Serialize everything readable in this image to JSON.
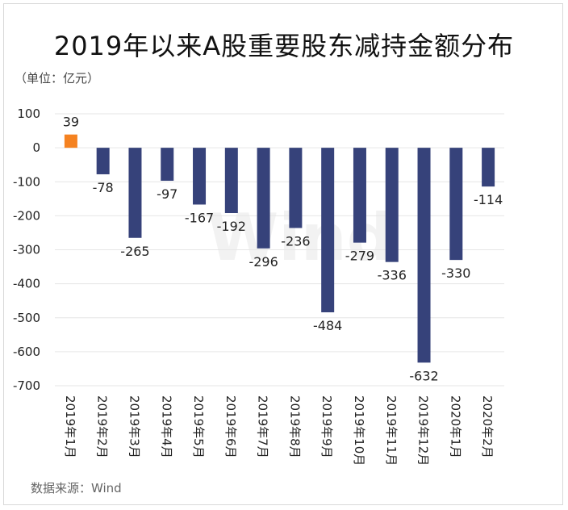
{
  "title": "2019年以来A股重要股东减持金额分布",
  "unit": "（单位：亿元）",
  "source": "数据来源：Wind",
  "watermark": "Wind",
  "colors": {
    "positive": "#f58220",
    "negative": "#36427a"
  },
  "chart_data": {
    "type": "bar",
    "title": "2019年以来A股重要股东减持金额分布",
    "xlabel": "",
    "ylabel": "（单位：亿元）",
    "ylim": [
      -700,
      100
    ],
    "yticks": [
      100,
      0,
      -100,
      -200,
      -300,
      -400,
      -500,
      -600,
      -700
    ],
    "grid": true,
    "categories": [
      "2019年1月",
      "2019年2月",
      "2019年3月",
      "2019年4月",
      "2019年5月",
      "2019年6月",
      "2019年7月",
      "2019年8月",
      "2019年9月",
      "2019年10月",
      "2019年11月",
      "2019年12月",
      "2020年1月",
      "2020年2月"
    ],
    "values": [
      39,
      -78,
      -265,
      -97,
      -167,
      -192,
      -296,
      -236,
      -484,
      -279,
      -336,
      -632,
      -330,
      -114
    ]
  }
}
